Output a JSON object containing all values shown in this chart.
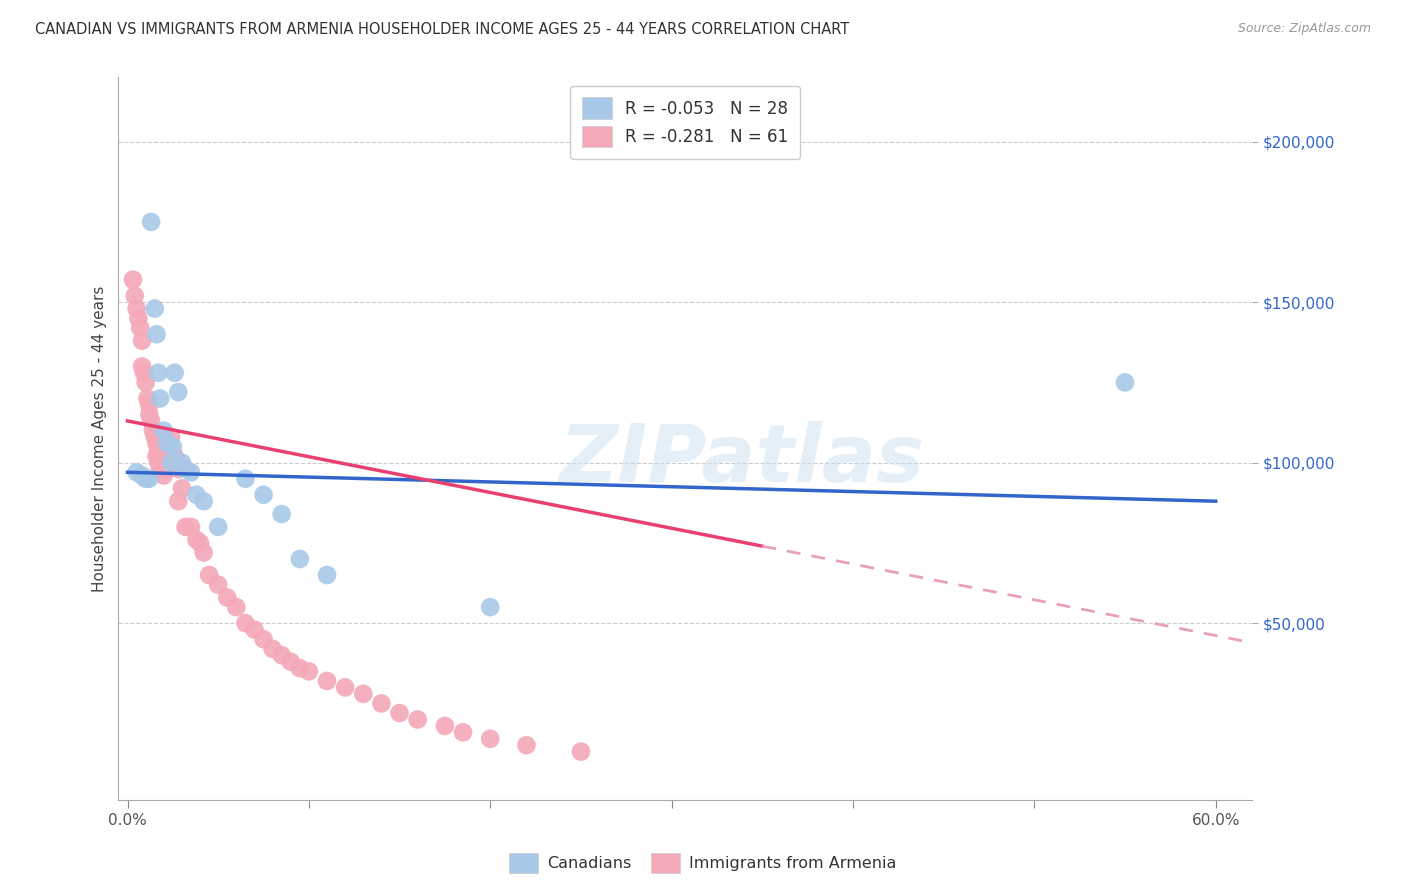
{
  "title": "CANADIAN VS IMMIGRANTS FROM ARMENIA HOUSEHOLDER INCOME AGES 25 - 44 YEARS CORRELATION CHART",
  "source": "Source: ZipAtlas.com",
  "ylabel": "Householder Income Ages 25 - 44 years",
  "ytick_labels": [
    "$50,000",
    "$100,000",
    "$150,000",
    "$200,000"
  ],
  "ytick_values": [
    50000,
    100000,
    150000,
    200000
  ],
  "ylim": [
    -5000,
    220000
  ],
  "xlim": [
    -0.005,
    0.62
  ],
  "legend_canadian": "R = -0.053   N = 28",
  "legend_armenia": "R = -0.281   N = 61",
  "canadian_color": "#a8c8e8",
  "armenia_color": "#f4a8b8",
  "trendline_canadian_color": "#3366cc",
  "trendline_armenia_color": "#e84070",
  "trendline_armenia_dashed_color": "#e8a0b8",
  "canadians_x": [
    0.005,
    0.008,
    0.01,
    0.012,
    0.013,
    0.015,
    0.016,
    0.017,
    0.018,
    0.02,
    0.022,
    0.024,
    0.025,
    0.026,
    0.028,
    0.03,
    0.032,
    0.035,
    0.038,
    0.042,
    0.05,
    0.065,
    0.075,
    0.085,
    0.095,
    0.11,
    0.2,
    0.55
  ],
  "canadians_y": [
    97000,
    96000,
    95000,
    95000,
    175000,
    148000,
    140000,
    128000,
    120000,
    110000,
    106000,
    100000,
    105000,
    128000,
    122000,
    100000,
    98000,
    97000,
    90000,
    88000,
    80000,
    95000,
    90000,
    84000,
    70000,
    65000,
    55000,
    125000
  ],
  "armenians_x": [
    0.003,
    0.004,
    0.005,
    0.006,
    0.007,
    0.008,
    0.008,
    0.009,
    0.01,
    0.011,
    0.012,
    0.012,
    0.013,
    0.014,
    0.015,
    0.016,
    0.016,
    0.017,
    0.017,
    0.018,
    0.018,
    0.019,
    0.02,
    0.02,
    0.021,
    0.022,
    0.023,
    0.024,
    0.025,
    0.026,
    0.028,
    0.028,
    0.03,
    0.032,
    0.035,
    0.038,
    0.04,
    0.042,
    0.045,
    0.05,
    0.055,
    0.06,
    0.065,
    0.07,
    0.075,
    0.08,
    0.085,
    0.09,
    0.095,
    0.1,
    0.11,
    0.12,
    0.13,
    0.14,
    0.15,
    0.16,
    0.175,
    0.185,
    0.2,
    0.22,
    0.25
  ],
  "armenians_y": [
    157000,
    152000,
    148000,
    145000,
    142000,
    138000,
    130000,
    128000,
    125000,
    120000,
    118000,
    115000,
    113000,
    110000,
    108000,
    106000,
    102000,
    100000,
    104000,
    98000,
    102000,
    100000,
    100000,
    96000,
    98000,
    105000,
    104000,
    108000,
    100000,
    102000,
    98000,
    88000,
    92000,
    80000,
    80000,
    76000,
    75000,
    72000,
    65000,
    62000,
    58000,
    55000,
    50000,
    48000,
    45000,
    42000,
    40000,
    38000,
    36000,
    35000,
    32000,
    30000,
    28000,
    25000,
    22000,
    20000,
    18000,
    16000,
    14000,
    12000,
    10000
  ],
  "watermark_text": "ZIPatlas",
  "bottom_legend_canadians": "Canadians",
  "bottom_legend_armenia": "Immigrants from Armenia"
}
